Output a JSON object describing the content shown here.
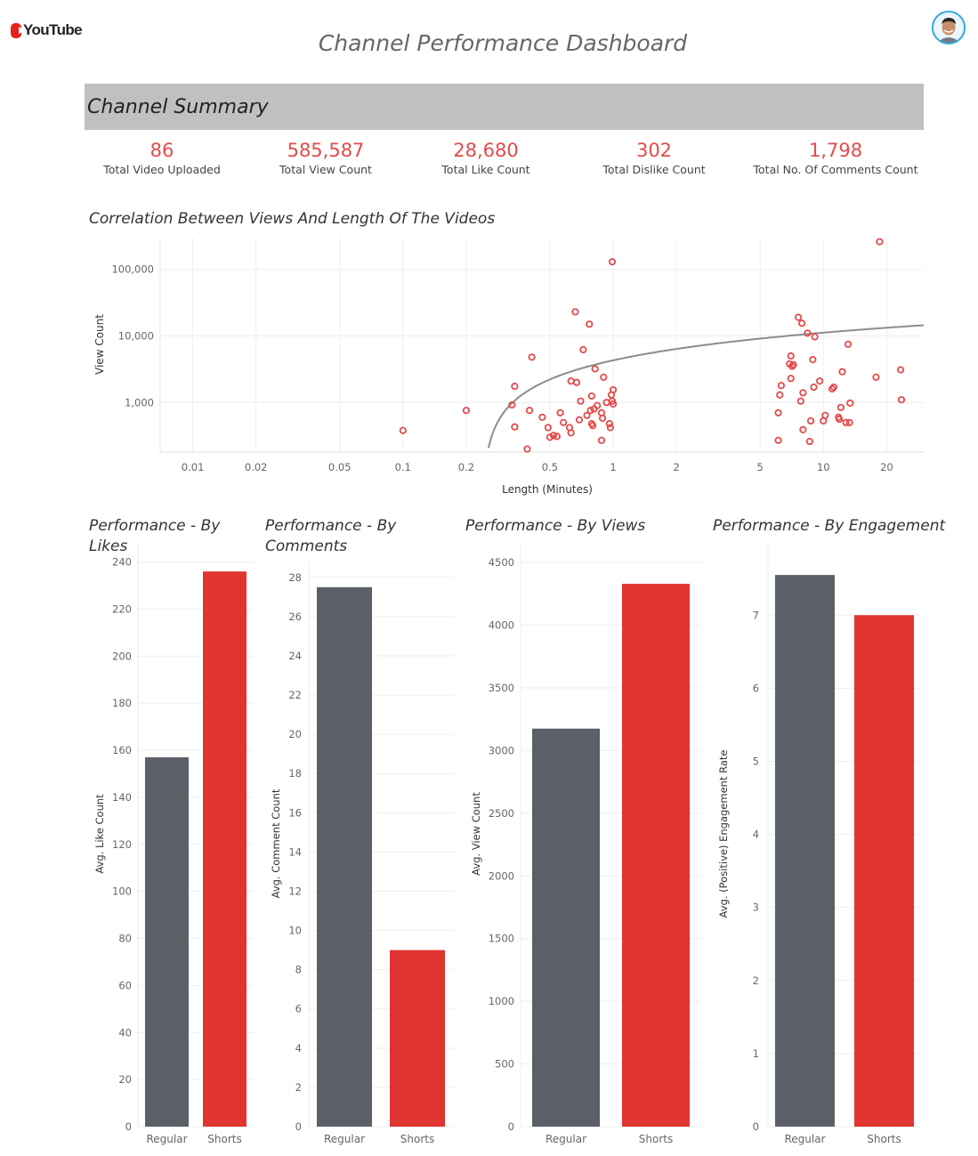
{
  "logo_text": "YouTube",
  "page_title": "Channel Performance Dashboard",
  "summary": {
    "title": "Channel Summary",
    "kpis": [
      {
        "value": "86",
        "label": "Total Video Uploaded"
      },
      {
        "value": "585,587",
        "label": "Total View Count"
      },
      {
        "value": "28,680",
        "label": "Total Like Count"
      },
      {
        "value": "302",
        "label": "Total Dislike Count"
      },
      {
        "value": "1,798",
        "label": "Total No. Of Comments Count"
      }
    ]
  },
  "colors": {
    "accent_red": "#e34b4b",
    "bar_regular": "#5b5f67",
    "bar_shorts": "#e03430",
    "band": "#c0c0c0",
    "trend": "#8c8c8c"
  },
  "chart_data": [
    {
      "type": "scatter",
      "title": "Correlation Between Views And Length Of The Videos",
      "xlabel": "Length (Minutes)",
      "ylabel": "View Count",
      "x_scale": "log",
      "y_scale": "log",
      "xlim": [
        0.007,
        30
      ],
      "ylim": [
        180,
        300000
      ],
      "x_ticks": [
        0.01,
        0.02,
        0.05,
        0.1,
        0.2,
        0.5,
        1,
        2,
        5,
        10,
        20
      ],
      "x_tick_labels": [
        "0.01",
        "0.02",
        "0.05",
        "0.1",
        "0.2",
        "0.5",
        "1",
        "2",
        "5",
        "10",
        "20"
      ],
      "y_ticks": [
        1000,
        10000,
        100000
      ],
      "y_tick_labels": [
        "1,000",
        "10,000",
        "100,000"
      ],
      "grid": true,
      "trend_line": {
        "type": "logarithmic",
        "y_at_x1": 4300,
        "y_at_x10": 11200
      },
      "points": [
        {
          "x": 0.1,
          "y": 380
        },
        {
          "x": 0.2,
          "y": 760
        },
        {
          "x": 0.33,
          "y": 920
        },
        {
          "x": 0.34,
          "y": 1750
        },
        {
          "x": 0.34,
          "y": 430
        },
        {
          "x": 0.39,
          "y": 200
        },
        {
          "x": 0.4,
          "y": 760
        },
        {
          "x": 0.41,
          "y": 4800
        },
        {
          "x": 0.46,
          "y": 600
        },
        {
          "x": 0.49,
          "y": 420
        },
        {
          "x": 0.5,
          "y": 300
        },
        {
          "x": 0.52,
          "y": 320
        },
        {
          "x": 0.54,
          "y": 310
        },
        {
          "x": 0.56,
          "y": 700
        },
        {
          "x": 0.58,
          "y": 500
        },
        {
          "x": 0.62,
          "y": 420
        },
        {
          "x": 0.63,
          "y": 350
        },
        {
          "x": 0.63,
          "y": 2100
        },
        {
          "x": 0.66,
          "y": 23000
        },
        {
          "x": 0.67,
          "y": 2000
        },
        {
          "x": 0.69,
          "y": 550
        },
        {
          "x": 0.7,
          "y": 1050
        },
        {
          "x": 0.72,
          "y": 6200
        },
        {
          "x": 0.75,
          "y": 640
        },
        {
          "x": 0.77,
          "y": 15000
        },
        {
          "x": 0.78,
          "y": 760
        },
        {
          "x": 0.79,
          "y": 480
        },
        {
          "x": 0.79,
          "y": 1250
        },
        {
          "x": 0.8,
          "y": 450
        },
        {
          "x": 0.81,
          "y": 800
        },
        {
          "x": 0.82,
          "y": 3200
        },
        {
          "x": 0.84,
          "y": 900
        },
        {
          "x": 0.88,
          "y": 270
        },
        {
          "x": 0.88,
          "y": 700
        },
        {
          "x": 0.89,
          "y": 580
        },
        {
          "x": 0.9,
          "y": 2400
        },
        {
          "x": 0.93,
          "y": 1000
        },
        {
          "x": 0.96,
          "y": 480
        },
        {
          "x": 0.97,
          "y": 420
        },
        {
          "x": 0.98,
          "y": 1300
        },
        {
          "x": 0.99,
          "y": 1050
        },
        {
          "x": 0.99,
          "y": 130000
        },
        {
          "x": 1.0,
          "y": 950
        },
        {
          "x": 1.0,
          "y": 1550
        },
        {
          "x": 6.1,
          "y": 270
        },
        {
          "x": 6.1,
          "y": 700
        },
        {
          "x": 6.2,
          "y": 1300
        },
        {
          "x": 6.3,
          "y": 1800
        },
        {
          "x": 6.9,
          "y": 3800
        },
        {
          "x": 7.0,
          "y": 2300
        },
        {
          "x": 7.0,
          "y": 5000
        },
        {
          "x": 7.1,
          "y": 3500
        },
        {
          "x": 7.2,
          "y": 3700
        },
        {
          "x": 7.6,
          "y": 19000
        },
        {
          "x": 7.8,
          "y": 1050
        },
        {
          "x": 7.9,
          "y": 15500
        },
        {
          "x": 8.0,
          "y": 390
        },
        {
          "x": 8.0,
          "y": 1400
        },
        {
          "x": 8.4,
          "y": 11000
        },
        {
          "x": 8.6,
          "y": 260
        },
        {
          "x": 8.7,
          "y": 530
        },
        {
          "x": 8.9,
          "y": 4400
        },
        {
          "x": 9.0,
          "y": 1700
        },
        {
          "x": 9.1,
          "y": 9700
        },
        {
          "x": 9.6,
          "y": 2100
        },
        {
          "x": 10.0,
          "y": 530
        },
        {
          "x": 10.2,
          "y": 640
        },
        {
          "x": 11.0,
          "y": 1600
        },
        {
          "x": 11.2,
          "y": 1700
        },
        {
          "x": 11.8,
          "y": 600
        },
        {
          "x": 11.9,
          "y": 560
        },
        {
          "x": 12.1,
          "y": 840
        },
        {
          "x": 12.3,
          "y": 2900
        },
        {
          "x": 12.8,
          "y": 500
        },
        {
          "x": 13.1,
          "y": 7500
        },
        {
          "x": 13.3,
          "y": 500
        },
        {
          "x": 13.4,
          "y": 980
        },
        {
          "x": 17.8,
          "y": 2400
        },
        {
          "x": 18.5,
          "y": 260000
        },
        {
          "x": 23.3,
          "y": 3100
        },
        {
          "x": 23.5,
          "y": 1100
        }
      ]
    },
    {
      "type": "bar",
      "title": "Performance - By Likes",
      "ylabel": "Avg. Like Count",
      "categories": [
        "Regular",
        "Shorts"
      ],
      "values": [
        157,
        236
      ],
      "ylim": [
        0,
        244
      ],
      "y_ticks": [
        0,
        20,
        40,
        60,
        80,
        100,
        120,
        140,
        160,
        180,
        200,
        220,
        240
      ]
    },
    {
      "type": "bar",
      "title": "Performance - By Comments",
      "ylabel": "Avg. Comment Count",
      "categories": [
        "Regular",
        "Shorts"
      ],
      "values": [
        27.5,
        9.0
      ],
      "ylim": [
        0,
        28.4
      ],
      "y_ticks": [
        0,
        2,
        4,
        6,
        8,
        10,
        12,
        14,
        16,
        18,
        20,
        22,
        24,
        26,
        28
      ]
    },
    {
      "type": "bar",
      "title": "Performance - By Views",
      "ylabel": "Avg. View Count",
      "categories": [
        "Regular",
        "Shorts"
      ],
      "values": [
        3175,
        4330
      ],
      "ylim": [
        0,
        4600
      ],
      "y_ticks": [
        0,
        500,
        1000,
        1500,
        2000,
        2500,
        3000,
        3500,
        4000,
        4500
      ]
    },
    {
      "type": "bar",
      "title": "Performance - By Engagement",
      "ylabel": "Avg. (Positive) Engagement Rate",
      "categories": [
        "Regular",
        "Shorts"
      ],
      "values": [
        7.55,
        7.0
      ],
      "ylim": [
        0,
        7.6
      ],
      "y_ticks": [
        0,
        1,
        2,
        3,
        4,
        5,
        6,
        7
      ]
    }
  ]
}
